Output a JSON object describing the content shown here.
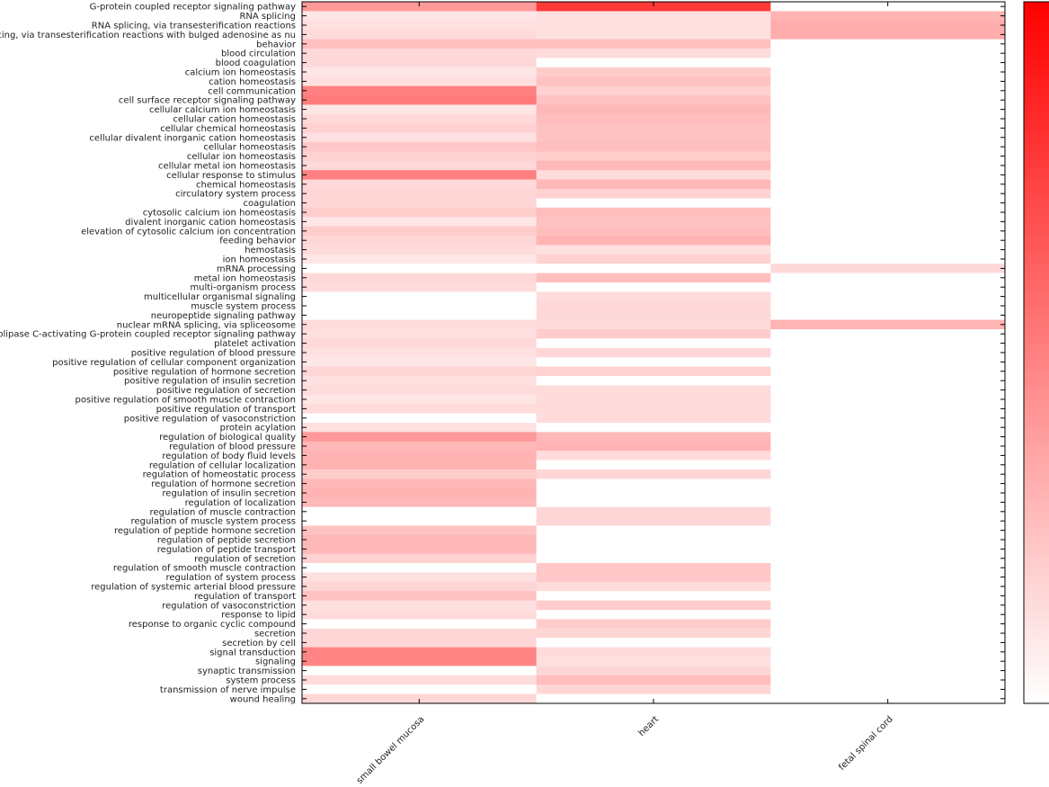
{
  "chart_data": {
    "type": "heatmap",
    "title": "",
    "xlabel": "",
    "ylabel": "",
    "columns": [
      "small bowel mucosa",
      "heart",
      "fetal spinal cord"
    ],
    "rows": [
      "G-protein coupled receptor signaling pathway",
      "RNA splicing",
      "RNA splicing, via transesterification reactions",
      "RNA splicing, via transesterification reactions with bulged adenosine as nu",
      "behavior",
      "blood circulation",
      "blood coagulation",
      "calcium ion homeostasis",
      "cation homeostasis",
      "cell communication",
      "cell surface receptor signaling pathway",
      "cellular calcium ion homeostasis",
      "cellular cation homeostasis",
      "cellular chemical homeostasis",
      "cellular divalent inorganic cation homeostasis",
      "cellular homeostasis",
      "cellular ion homeostasis",
      "cellular metal ion homeostasis",
      "cellular response to stimulus",
      "chemical homeostasis",
      "circulatory system process",
      "coagulation",
      "cytosolic calcium ion homeostasis",
      "divalent inorganic cation homeostasis",
      "elevation of cytosolic calcium ion concentration",
      "feeding behavior",
      "hemostasis",
      "ion homeostasis",
      "mRNA processing",
      "metal ion homeostasis",
      "multi-organism process",
      "multicellular organismal signaling",
      "muscle system process",
      "neuropeptide signaling pathway",
      "nuclear mRNA splicing, via spliceosome",
      "phospholipase C-activating G-protein coupled receptor signaling pathway",
      "platelet activation",
      "positive regulation of blood pressure",
      "positive regulation of cellular component organization",
      "positive regulation of hormone secretion",
      "positive regulation of insulin secretion",
      "positive regulation of secretion",
      "positive regulation of smooth muscle contraction",
      "positive regulation of transport",
      "positive regulation of vasoconstriction",
      "protein acylation",
      "regulation of biological quality",
      "regulation of blood pressure",
      "regulation of body fluid levels",
      "regulation of cellular localization",
      "regulation of homeostatic process",
      "regulation of hormone secretion",
      "regulation of insulin secretion",
      "regulation of localization",
      "regulation of muscle contraction",
      "regulation of muscle system process",
      "regulation of peptide hormone secretion",
      "regulation of peptide secretion",
      "regulation of peptide transport",
      "regulation of secretion",
      "regulation of smooth muscle contraction",
      "regulation of system process",
      "regulation of systemic arterial blood pressure",
      "regulation of transport",
      "regulation of vasoconstriction",
      "response to lipid",
      "response to organic cyclic compound",
      "secretion",
      "secretion by cell",
      "signal transduction",
      "signaling",
      "synaptic transmission",
      "system process",
      "transmission of nerve impulse",
      "wound healing"
    ],
    "values": [
      [
        0.4,
        0.78,
        0.0
      ],
      [
        0.1,
        0.12,
        0.3
      ],
      [
        0.12,
        0.12,
        0.32
      ],
      [
        0.14,
        0.12,
        0.32
      ],
      [
        0.25,
        0.25,
        0.0
      ],
      [
        0.15,
        0.14,
        0.0
      ],
      [
        0.15,
        0.0,
        0.0
      ],
      [
        0.1,
        0.2,
        0.0
      ],
      [
        0.12,
        0.24,
        0.0
      ],
      [
        0.5,
        0.18,
        0.0
      ],
      [
        0.52,
        0.24,
        0.0
      ],
      [
        0.1,
        0.28,
        0.0
      ],
      [
        0.15,
        0.26,
        0.0
      ],
      [
        0.18,
        0.24,
        0.0
      ],
      [
        0.12,
        0.24,
        0.0
      ],
      [
        0.22,
        0.26,
        0.0
      ],
      [
        0.18,
        0.2,
        0.0
      ],
      [
        0.15,
        0.28,
        0.0
      ],
      [
        0.5,
        0.14,
        0.0
      ],
      [
        0.15,
        0.28,
        0.0
      ],
      [
        0.16,
        0.18,
        0.0
      ],
      [
        0.16,
        0.0,
        0.0
      ],
      [
        0.2,
        0.26,
        0.0
      ],
      [
        0.1,
        0.24,
        0.0
      ],
      [
        0.2,
        0.26,
        0.0
      ],
      [
        0.16,
        0.3,
        0.0
      ],
      [
        0.14,
        0.12,
        0.0
      ],
      [
        0.1,
        0.18,
        0.0
      ],
      [
        0.0,
        0.0,
        0.15
      ],
      [
        0.15,
        0.25,
        0.0
      ],
      [
        0.14,
        0.0,
        0.0
      ],
      [
        0.0,
        0.14,
        0.0
      ],
      [
        0.0,
        0.15,
        0.0
      ],
      [
        0.0,
        0.15,
        0.0
      ],
      [
        0.14,
        0.14,
        0.3
      ],
      [
        0.12,
        0.2,
        0.0
      ],
      [
        0.15,
        0.0,
        0.0
      ],
      [
        0.12,
        0.16,
        0.0
      ],
      [
        0.1,
        0.0,
        0.0
      ],
      [
        0.16,
        0.18,
        0.0
      ],
      [
        0.12,
        0.0,
        0.0
      ],
      [
        0.14,
        0.14,
        0.0
      ],
      [
        0.1,
        0.14,
        0.0
      ],
      [
        0.14,
        0.14,
        0.0
      ],
      [
        0.0,
        0.14,
        0.0
      ],
      [
        0.12,
        0.0,
        0.0
      ],
      [
        0.4,
        0.28,
        0.0
      ],
      [
        0.28,
        0.3,
        0.0
      ],
      [
        0.3,
        0.14,
        0.0
      ],
      [
        0.3,
        0.0,
        0.0
      ],
      [
        0.2,
        0.16,
        0.0
      ],
      [
        0.28,
        0.0,
        0.0
      ],
      [
        0.3,
        0.0,
        0.0
      ],
      [
        0.28,
        0.0,
        0.0
      ],
      [
        0.0,
        0.16,
        0.0
      ],
      [
        0.0,
        0.16,
        0.0
      ],
      [
        0.24,
        0.0,
        0.0
      ],
      [
        0.28,
        0.0,
        0.0
      ],
      [
        0.28,
        0.0,
        0.0
      ],
      [
        0.18,
        0.0,
        0.0
      ],
      [
        0.0,
        0.22,
        0.0
      ],
      [
        0.12,
        0.22,
        0.0
      ],
      [
        0.16,
        0.14,
        0.0
      ],
      [
        0.24,
        0.0,
        0.0
      ],
      [
        0.12,
        0.2,
        0.0
      ],
      [
        0.14,
        0.0,
        0.0
      ],
      [
        0.0,
        0.2,
        0.0
      ],
      [
        0.16,
        0.16,
        0.0
      ],
      [
        0.16,
        0.0,
        0.0
      ],
      [
        0.48,
        0.14,
        0.0
      ],
      [
        0.48,
        0.12,
        0.0
      ],
      [
        0.0,
        0.16,
        0.0
      ],
      [
        0.14,
        0.26,
        0.0
      ],
      [
        0.0,
        0.16,
        0.0
      ],
      [
        0.16,
        0.0,
        0.0
      ]
    ],
    "colorbar": {
      "low_color": "#ffffff",
      "high_color": "#ff0000"
    },
    "grid": false,
    "legend": "colorbar-right"
  }
}
